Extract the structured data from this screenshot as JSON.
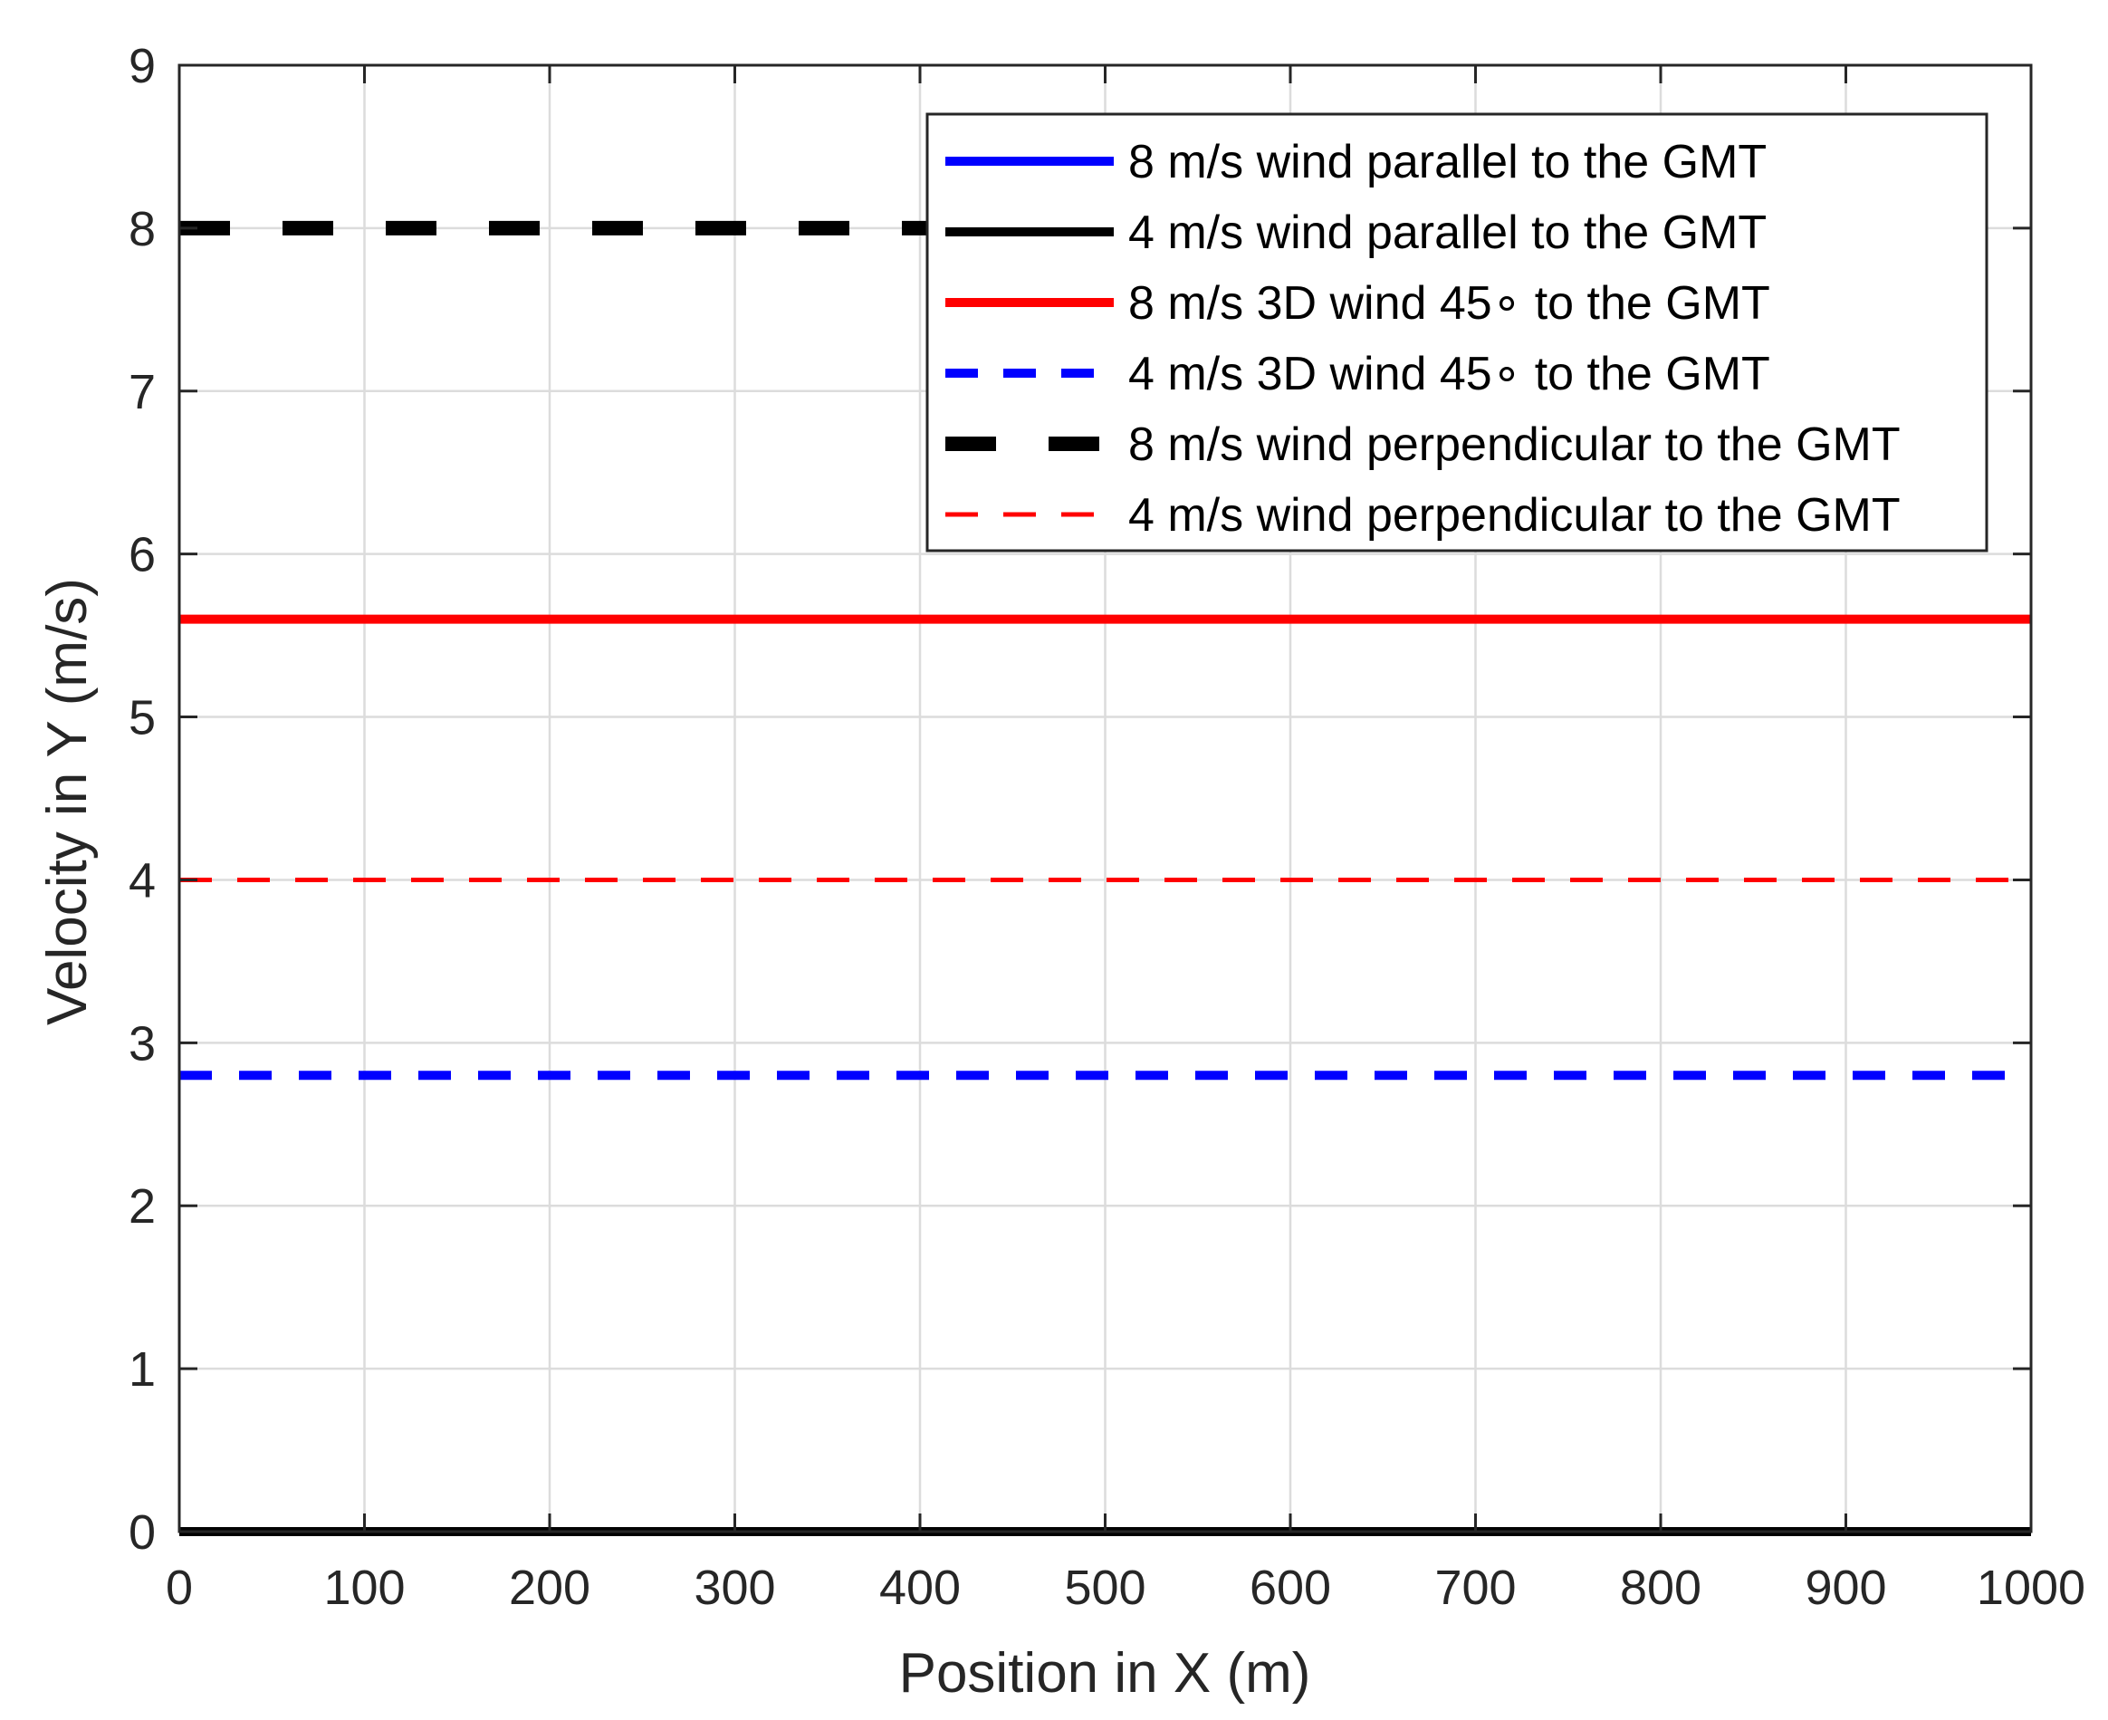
{
  "chart_data": {
    "type": "line",
    "title": "",
    "xlabel": "Position in X (m)",
    "ylabel": "Velocity in Y (m/s)",
    "xlim": [
      0,
      1000
    ],
    "ylim": [
      0,
      9
    ],
    "xticks": [
      0,
      100,
      200,
      300,
      400,
      500,
      600,
      700,
      800,
      900,
      1000
    ],
    "yticks": [
      0,
      1,
      2,
      3,
      4,
      5,
      6,
      7,
      8,
      9
    ],
    "grid": true,
    "legend_position": "top-right",
    "series": [
      {
        "name": "8 m/s wind parallel to the GMT",
        "x": [
          0,
          1000
        ],
        "y": [
          0,
          0
        ],
        "color": "#0000ff",
        "style": "solid",
        "weight": "thick"
      },
      {
        "name": "4 m/s wind parallel to the GMT",
        "x": [
          0,
          1000
        ],
        "y": [
          0,
          0
        ],
        "color": "#000000",
        "style": "solid",
        "weight": "thick"
      },
      {
        "name": "8 m/s 3D wind 45∘ to the GMT",
        "x": [
          0,
          1000
        ],
        "y": [
          5.6,
          5.6
        ],
        "color": "#ff0000",
        "style": "solid",
        "weight": "thick"
      },
      {
        "name": "4 m/s 3D wind 45∘ to the GMT",
        "x": [
          0,
          1000
        ],
        "y": [
          2.8,
          2.8
        ],
        "color": "#0000ff",
        "style": "dashed",
        "weight": "thick"
      },
      {
        "name": "8 m/s wind perpendicular to the GMT",
        "x": [
          0,
          1000
        ],
        "y": [
          8,
          8
        ],
        "color": "#000000",
        "style": "dashed",
        "weight": "heavy"
      },
      {
        "name": "4 m/s wind perpendicular to the GMT",
        "x": [
          0,
          1000
        ],
        "y": [
          4,
          4
        ],
        "color": "#ff0000",
        "style": "dashed",
        "weight": "thin"
      }
    ]
  }
}
